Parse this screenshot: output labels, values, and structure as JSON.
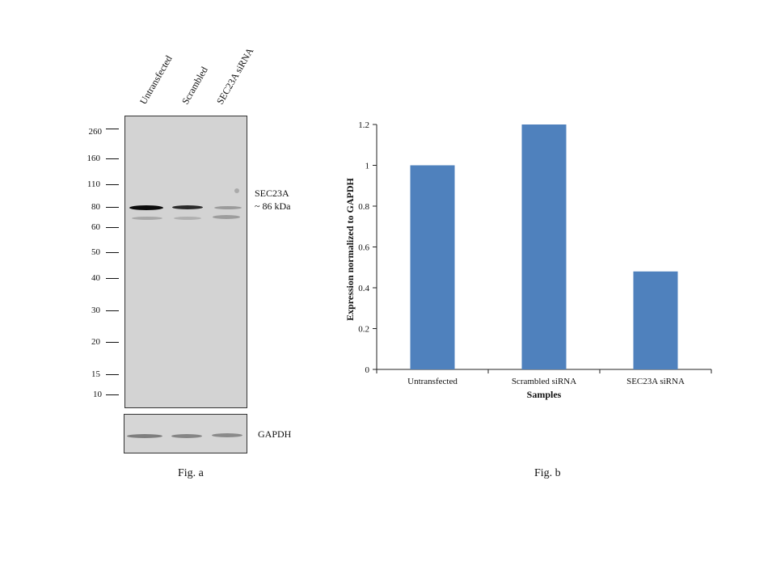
{
  "fig_a": {
    "lanes": [
      "Untransfected",
      "Scrambled",
      "SEC23A siRNA"
    ],
    "markers": [
      "260",
      "160",
      "110",
      "80",
      "60",
      "50",
      "40",
      "30",
      "20",
      "15",
      "10"
    ],
    "target_label": "SEC23A",
    "target_size": "~ 86 kDa",
    "loading_control": "GAPDH",
    "caption": "Fig.  a"
  },
  "fig_b": {
    "caption": "Fig.  b"
  },
  "chart_data": {
    "type": "bar",
    "categories": [
      "Untransfected",
      "Scrambled siRNA",
      "SEC23A siRNA"
    ],
    "values": [
      1.0,
      1.2,
      0.48
    ],
    "xlabel": "Samples",
    "ylabel": "Expression normalized to GAPDH",
    "ylim": [
      0,
      1.2
    ],
    "yticks": [
      "0",
      "0.2",
      "0.4",
      "0.6",
      "0.8",
      "1",
      "1.2"
    ],
    "bar_color": "#4F81BD",
    "grid": false,
    "legend": "none"
  }
}
